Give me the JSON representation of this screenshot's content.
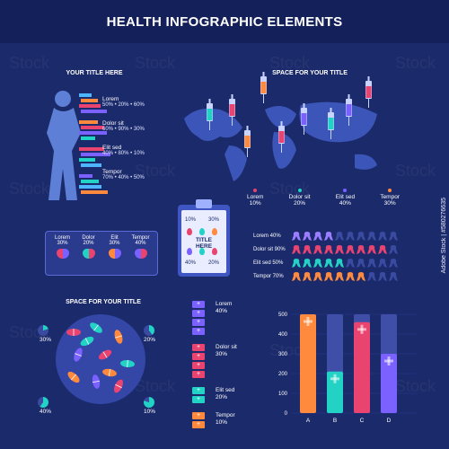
{
  "header": {
    "title": "HEALTH INFOGRAPHIC ELEMENTS"
  },
  "watermark": "Adobe Stock | #580276635",
  "stock_marks": [
    "Stock",
    "Stock",
    "Stock",
    "Stock",
    "Stock",
    "Stock",
    "Stock",
    "Stock",
    "Stock",
    "Stock",
    "Stock",
    "Stock"
  ],
  "body_section": {
    "title": "YOUR TITLE HERE",
    "items": [
      {
        "label": "Lorem",
        "values": "50% • 20% • 60%"
      },
      {
        "label": "Dolor sit",
        "values": "60% • 90% • 30%"
      },
      {
        "label": "Elit sed",
        "values": "40% • 80% • 10%"
      },
      {
        "label": "Tempor",
        "values": "70% • 40% • 50%"
      }
    ],
    "bar_colors": [
      "#4db6ff",
      "#ff8a3d",
      "#e94370",
      "#7b61ff",
      "#22d3c5"
    ]
  },
  "map_section": {
    "title": "SPACE FOR YOUR TITLE",
    "syringe_colors": [
      "#ff8a3d",
      "#e94370",
      "#22d3c5",
      "#7b61ff",
      "#e94370",
      "#ff8a3d",
      "#22d3c5",
      "#7b61ff",
      "#e94370"
    ],
    "legend": [
      {
        "label": "Lorem",
        "value": "10%",
        "color": "#e94370"
      },
      {
        "label": "Dolor sit",
        "value": "20%",
        "color": "#22d3c5"
      },
      {
        "label": "Elit sed",
        "value": "40%",
        "color": "#7b61ff"
      },
      {
        "label": "Tempor",
        "value": "30%",
        "color": "#ff8a3d"
      }
    ]
  },
  "hearts_panel": {
    "items": [
      {
        "label": "Lorem",
        "value": "30%"
      },
      {
        "label": "Dolor",
        "value": "20%"
      },
      {
        "label": "Elit",
        "value": "30%"
      },
      {
        "label": "Tempor",
        "value": "40%"
      }
    ]
  },
  "clipboard": {
    "title": "TITLE HERE",
    "values": [
      "10%",
      "30%",
      "40%",
      "20%"
    ]
  },
  "ribbons": {
    "rows": [
      {
        "label": "Lorem 40%",
        "color": "#9b7bff",
        "filled": 4
      },
      {
        "label": "Dolor sit 90%",
        "color": "#e94370",
        "filled": 9
      },
      {
        "label": "Elit sed 50%",
        "color": "#22d3c5",
        "filled": 5
      },
      {
        "label": "Tempor 70%",
        "color": "#ff8a3d",
        "filled": 7
      }
    ],
    "total": 10,
    "empty_color": "#3a4aa0"
  },
  "pills_section": {
    "title": "SPACE FOR YOUR TITLE",
    "labels": [
      "30%",
      "20%",
      "40%",
      "10%"
    ]
  },
  "medkit": {
    "items": [
      {
        "label": "Lorem",
        "value": "40%",
        "color": "#7b61ff"
      },
      {
        "label": "Dolor sit",
        "value": "30%",
        "color": "#e94370"
      },
      {
        "label": "Elit sed",
        "value": "20%",
        "color": "#22d3c5"
      },
      {
        "label": "Tempor",
        "value": "10%",
        "color": "#ff8a3d"
      }
    ]
  },
  "chart_data": {
    "type": "bar",
    "categories": [
      "A",
      "B",
      "C",
      "D"
    ],
    "values": [
      500,
      210,
      460,
      300
    ],
    "ylim": [
      0,
      500
    ],
    "yticks": [
      "0",
      "100",
      "200",
      "300",
      "400",
      "500"
    ],
    "colors": [
      "#ff8a3d",
      "#22d3c5",
      "#e94370",
      "#7b61ff"
    ],
    "track_color": "#3f4fa8",
    "grid": true
  }
}
